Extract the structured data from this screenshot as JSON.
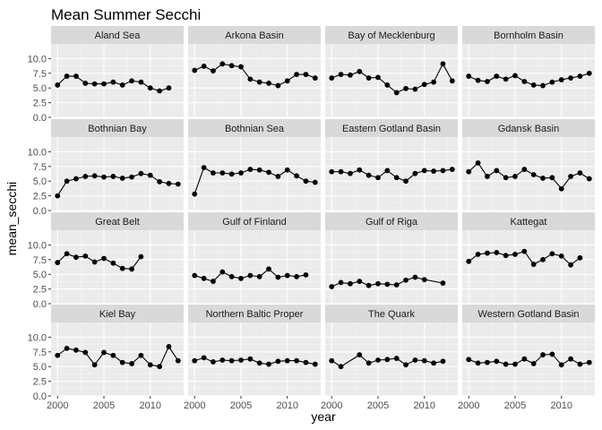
{
  "chart_data": {
    "type": "line",
    "title": "Mean Summer Secchi",
    "xlabel": "year",
    "ylabel": "mean_secchi",
    "xlim": [
      1999.3,
      2013.6
    ],
    "ylim": [
      0,
      12.5
    ],
    "x_ticks": [
      2000,
      2005,
      2010
    ],
    "y_ticks": [
      0.0,
      2.5,
      5.0,
      7.5,
      10.0
    ],
    "y_tick_labels": [
      "0.0",
      "2.5",
      "5.0",
      "7.5",
      "10.0"
    ],
    "layout": "facet-grid 4x4, shared axes",
    "panels": [
      {
        "name": "Aland Sea",
        "x": [
          2000,
          2001,
          2002,
          2003,
          2004,
          2005,
          2006,
          2007,
          2008,
          2009,
          2010,
          2011,
          2012
        ],
        "y": [
          5.5,
          7.0,
          7.0,
          5.8,
          5.7,
          5.7,
          6.0,
          5.5,
          6.2,
          6.0,
          5.0,
          4.5,
          5.0
        ]
      },
      {
        "name": "Arkona Basin",
        "x": [
          2000,
          2001,
          2002,
          2003,
          2004,
          2005,
          2006,
          2007,
          2008,
          2009,
          2010,
          2011,
          2012,
          2013
        ],
        "y": [
          8.0,
          8.7,
          7.9,
          9.1,
          8.8,
          8.6,
          6.5,
          6.0,
          5.8,
          5.4,
          6.2,
          7.3,
          7.3,
          6.7
        ]
      },
      {
        "name": "Bay of Mecklenburg",
        "x": [
          2000,
          2001,
          2002,
          2003,
          2004,
          2005,
          2006,
          2007,
          2008,
          2009,
          2010,
          2011,
          2012,
          2013
        ],
        "y": [
          6.7,
          7.3,
          7.2,
          7.8,
          6.7,
          6.8,
          5.5,
          4.2,
          4.9,
          4.8,
          5.6,
          6.0,
          9.1,
          6.2
        ]
      },
      {
        "name": "Bornholm Basin",
        "x": [
          2000,
          2001,
          2002,
          2003,
          2004,
          2005,
          2006,
          2007,
          2008,
          2009,
          2010,
          2011,
          2012,
          2013
        ],
        "y": [
          7.0,
          6.3,
          6.1,
          7.0,
          6.5,
          7.1,
          6.1,
          5.5,
          5.4,
          6.0,
          6.4,
          6.7,
          7.0,
          7.5
        ]
      },
      {
        "name": "Bothnian Bay",
        "x": [
          2000,
          2001,
          2002,
          2003,
          2004,
          2005,
          2006,
          2007,
          2008,
          2009,
          2010,
          2011,
          2012,
          2013
        ],
        "y": [
          2.5,
          5.0,
          5.4,
          5.8,
          5.9,
          5.7,
          5.8,
          5.5,
          5.7,
          6.3,
          6.0,
          4.9,
          4.6,
          4.5
        ]
      },
      {
        "name": "Bothnian Sea",
        "x": [
          2000,
          2001,
          2002,
          2003,
          2004,
          2005,
          2006,
          2007,
          2008,
          2009,
          2010,
          2011,
          2012,
          2013
        ],
        "y": [
          2.8,
          7.3,
          6.4,
          6.4,
          6.2,
          6.4,
          7.0,
          6.9,
          6.5,
          5.8,
          6.9,
          5.9,
          5.0,
          4.8
        ]
      },
      {
        "name": "Eastern Gotland Basin",
        "x": [
          2000,
          2001,
          2002,
          2003,
          2004,
          2005,
          2006,
          2007,
          2008,
          2009,
          2010,
          2011,
          2012,
          2013
        ],
        "y": [
          6.6,
          6.6,
          6.3,
          6.9,
          6.0,
          5.6,
          6.8,
          5.6,
          5.0,
          6.3,
          6.8,
          6.7,
          6.8,
          7.0
        ]
      },
      {
        "name": "Gdansk Basin",
        "x": [
          2000,
          2001,
          2002,
          2003,
          2004,
          2005,
          2006,
          2007,
          2008,
          2009,
          2010,
          2011,
          2012,
          2013
        ],
        "y": [
          6.6,
          8.1,
          5.8,
          6.8,
          5.6,
          5.8,
          7.0,
          6.1,
          5.5,
          5.6,
          3.7,
          5.8,
          6.4,
          5.4
        ]
      },
      {
        "name": "Great Belt",
        "x": [
          2000,
          2001,
          2002,
          2003,
          2004,
          2005,
          2006,
          2007,
          2008,
          2009
        ],
        "y": [
          7.0,
          8.5,
          7.9,
          8.1,
          7.1,
          7.7,
          6.9,
          6.0,
          5.9,
          8.0
        ]
      },
      {
        "name": "Gulf of Finland",
        "x": [
          2000,
          2001,
          2002,
          2003,
          2004,
          2005,
          2006,
          2007,
          2008,
          2009,
          2010,
          2011,
          2012
        ],
        "y": [
          4.8,
          4.3,
          3.8,
          5.4,
          4.6,
          4.3,
          4.8,
          4.6,
          5.9,
          4.5,
          4.8,
          4.6,
          4.9
        ]
      },
      {
        "name": "Gulf of Riga",
        "x": [
          2000,
          2001,
          2002,
          2003,
          2004,
          2005,
          2006,
          2007,
          2008,
          2009,
          2010,
          2012
        ],
        "y": [
          2.9,
          3.6,
          3.4,
          3.8,
          3.1,
          3.4,
          3.3,
          3.2,
          4.0,
          4.5,
          4.1,
          3.5
        ]
      },
      {
        "name": "Kattegat",
        "x": [
          2000,
          2001,
          2002,
          2003,
          2004,
          2005,
          2006,
          2007,
          2008,
          2009,
          2010,
          2011,
          2012
        ],
        "y": [
          7.2,
          8.4,
          8.6,
          8.7,
          8.2,
          8.4,
          8.9,
          6.7,
          7.5,
          8.5,
          8.1,
          6.6,
          7.8
        ]
      },
      {
        "name": "Kiel Bay",
        "x": [
          2000,
          2001,
          2002,
          2003,
          2004,
          2005,
          2006,
          2007,
          2008,
          2009,
          2010,
          2011,
          2012,
          2013
        ],
        "y": [
          6.9,
          8.1,
          7.8,
          7.4,
          5.3,
          7.4,
          6.9,
          5.7,
          5.5,
          6.9,
          5.3,
          5.0,
          8.4,
          6.0
        ]
      },
      {
        "name": "Northern Baltic Proper",
        "x": [
          2000,
          2001,
          2002,
          2003,
          2004,
          2005,
          2006,
          2007,
          2008,
          2009,
          2010,
          2011,
          2012,
          2013
        ],
        "y": [
          6.0,
          6.5,
          5.8,
          6.1,
          6.0,
          6.1,
          6.3,
          5.6,
          5.4,
          5.9,
          6.0,
          6.0,
          5.7,
          5.4
        ]
      },
      {
        "name": "The Quark",
        "x": [
          2000,
          2001,
          2003,
          2004,
          2005,
          2006,
          2007,
          2008,
          2009,
          2010,
          2011,
          2012
        ],
        "y": [
          6.0,
          5.0,
          7.0,
          5.6,
          6.1,
          6.2,
          6.4,
          5.3,
          6.1,
          6.0,
          5.6,
          5.9
        ]
      },
      {
        "name": "Western Gotland Basin",
        "x": [
          2000,
          2001,
          2002,
          2003,
          2004,
          2005,
          2006,
          2007,
          2008,
          2009,
          2010,
          2011,
          2012,
          2013
        ],
        "y": [
          6.2,
          5.6,
          5.7,
          5.9,
          5.4,
          5.4,
          6.3,
          5.5,
          7.0,
          7.1,
          5.3,
          6.3,
          5.4,
          5.7
        ]
      }
    ]
  }
}
